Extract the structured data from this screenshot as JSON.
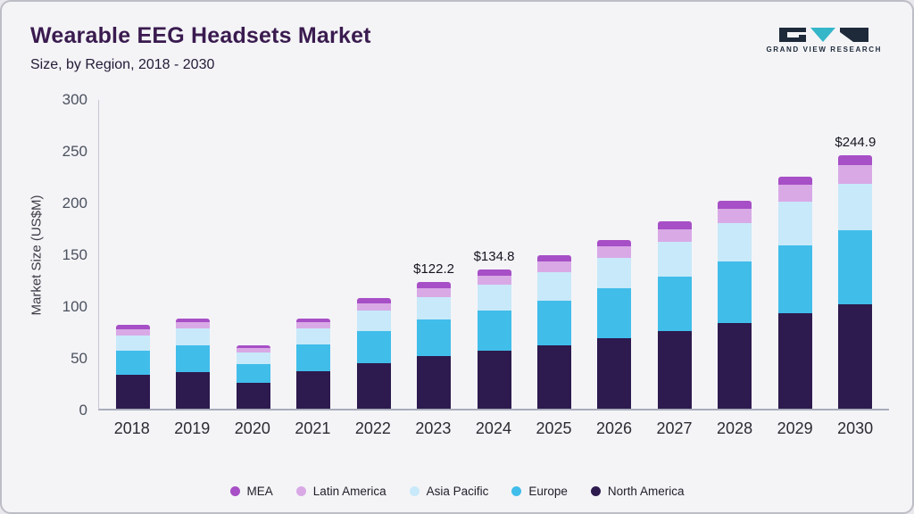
{
  "header": {
    "title": "Wearable EEG Headsets Market",
    "subtitle": "Size, by Region, 2018 - 2030",
    "logo_text": "GRAND VIEW RESEARCH"
  },
  "chart_data": {
    "type": "bar",
    "stacked": true,
    "title": "Wearable EEG Headsets Market",
    "subtitle": "Size, by Region, 2018 - 2030",
    "xlabel": "",
    "ylabel": "Market Size (US$M)",
    "ylim": [
      0,
      300
    ],
    "yticks": [
      0,
      50,
      100,
      150,
      200,
      250,
      300
    ],
    "grid": false,
    "legend_position": "bottom",
    "categories": [
      "2018",
      "2019",
      "2020",
      "2021",
      "2022",
      "2023",
      "2024",
      "2025",
      "2026",
      "2027",
      "2028",
      "2029",
      "2030"
    ],
    "series": [
      {
        "name": "North America",
        "color": "#2d1a4e",
        "values": [
          33,
          35,
          25,
          36,
          44,
          51,
          56,
          61,
          68,
          75,
          83,
          92,
          101
        ]
      },
      {
        "name": "Europe",
        "color": "#41bdea",
        "values": [
          23,
          26,
          18,
          26,
          31,
          35,
          39,
          43,
          48,
          53,
          59,
          66,
          71
        ]
      },
      {
        "name": "Asia Pacific",
        "color": "#c8e9f9",
        "values": [
          15,
          17,
          11,
          16,
          20,
          22.2,
          25,
          28,
          30,
          33,
          37,
          42,
          45
        ]
      },
      {
        "name": "Latin America",
        "color": "#d9a9e6",
        "values": [
          6,
          6,
          4.5,
          6,
          7,
          8,
          8.8,
          10,
          11,
          12,
          14,
          16,
          18
        ]
      },
      {
        "name": "MEA",
        "color": "#a74fc6",
        "values": [
          4,
          3,
          2.5,
          3,
          5,
          6,
          6,
          6,
          6,
          8,
          8,
          8,
          9.9
        ]
      }
    ],
    "annotations": [
      {
        "category": "2023",
        "label": "$122.2"
      },
      {
        "category": "2024",
        "label": "$134.8"
      },
      {
        "category": "2030",
        "label": "$244.9"
      }
    ],
    "legend": [
      "MEA",
      "Latin America",
      "Asia Pacific",
      "Europe",
      "North America"
    ]
  }
}
